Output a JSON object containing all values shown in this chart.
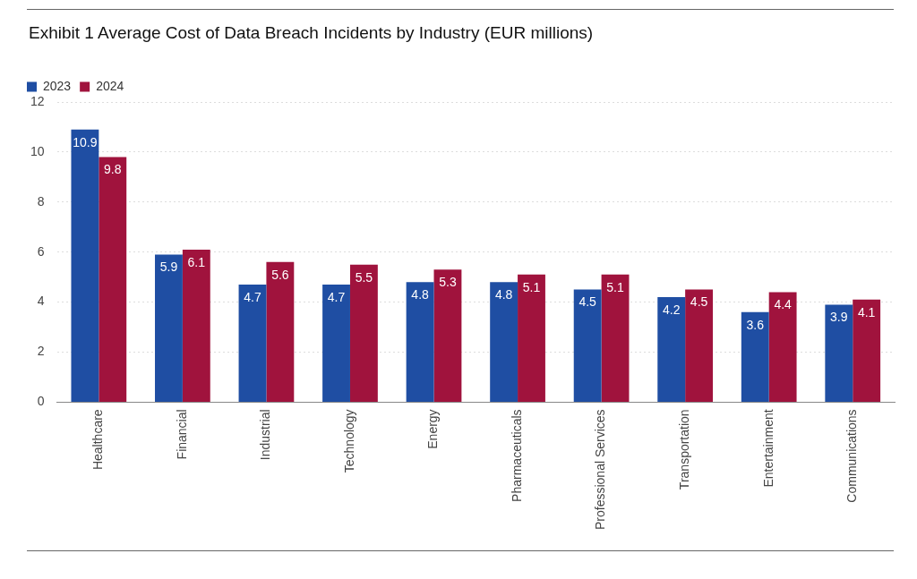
{
  "chart_data": {
    "type": "bar",
    "title": "Exhibit 1 Average Cost of Data Breach Incidents by Industry (EUR millions)",
    "categories": [
      "Healthcare",
      "Financial",
      "Industrial",
      "Technology",
      "Energy",
      "Pharmaceuticals",
      "Professional Services",
      "Transportation",
      "Entertainment",
      "Communications"
    ],
    "series": [
      {
        "name": "2023",
        "color": "#1f4ea3",
        "values": [
          10.9,
          5.9,
          4.7,
          4.7,
          4.8,
          4.8,
          4.5,
          4.2,
          3.6,
          3.9
        ]
      },
      {
        "name": "2024",
        "color": "#a0133d",
        "values": [
          9.8,
          6.1,
          5.6,
          5.5,
          5.3,
          5.1,
          5.1,
          4.5,
          4.4,
          4.1
        ]
      }
    ],
    "ylim": [
      0,
      12
    ],
    "yticks": [
      0,
      2,
      4,
      6,
      8,
      10,
      12
    ],
    "grid": "y",
    "legend": "top left",
    "data_labels": true
  }
}
